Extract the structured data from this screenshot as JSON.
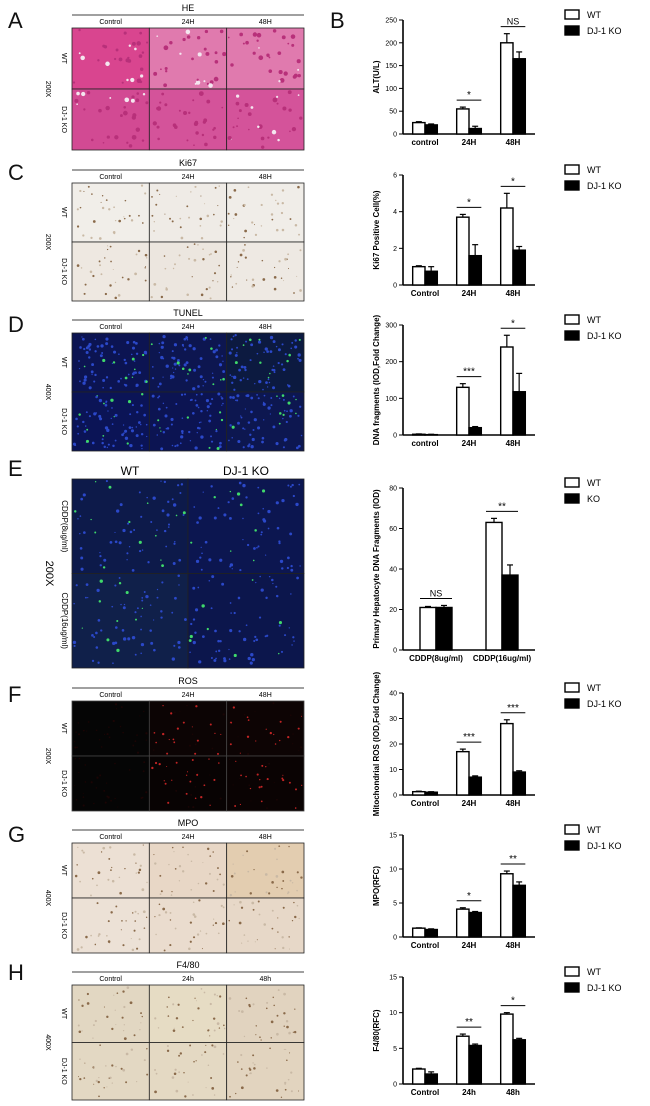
{
  "panel_letters": [
    "A",
    "B",
    "C",
    "D",
    "E",
    "F",
    "G",
    "H"
  ],
  "micro_panels": [
    {
      "id": "A",
      "title": "HE",
      "cols": [
        "Control",
        "24H",
        "48H"
      ],
      "rows": [
        "WT",
        "DJ-1 KO"
      ],
      "mag": "200X",
      "kind": "he",
      "tiles": [
        "#d9458f",
        "#e07aae",
        "#e07aae",
        "#d24a93",
        "#d4539a",
        "#d4539a"
      ]
    },
    {
      "id": "C",
      "title": "Ki67",
      "cols": [
        "Control",
        "24H",
        "48H"
      ],
      "rows": [
        "WT",
        "DJ-1 KO"
      ],
      "mag": "200X",
      "kind": "ihc",
      "tiles": [
        "#f1eee9",
        "#efebe6",
        "#f0ede8",
        "#eee8e1",
        "#ece6df",
        "#eee9e3"
      ]
    },
    {
      "id": "D",
      "title": "TUNEL",
      "cols": [
        "Control",
        "24H",
        "48H"
      ],
      "rows": [
        "WT",
        "DJ-1 KO"
      ],
      "mag": "400X",
      "kind": "fluor",
      "tiles": [
        "#0c1452",
        "#0d1650",
        "#0c1a40",
        "#0b1456",
        "#0c1452",
        "#0d1750"
      ]
    },
    {
      "id": "E",
      "title": "",
      "cols": [
        "WT",
        "DJ-1 KO"
      ],
      "rows": [
        "CDDP(8ug/ml)",
        "CDDP(16ug/ml)"
      ],
      "mag": "200X",
      "kind": "fluor",
      "tiles": [
        "#0d1a4a",
        "#0c1650",
        "#10204a",
        "#0c164c"
      ]
    },
    {
      "id": "F",
      "title": "ROS",
      "cols": [
        "Control",
        "24H",
        "48H"
      ],
      "rows": [
        "WT",
        "DJ-1 KO"
      ],
      "mag": "200X",
      "kind": "dark",
      "tiles": [
        "#050505",
        "#0c0404",
        "#0d0404",
        "#050505",
        "#080303",
        "#0a0303"
      ]
    },
    {
      "id": "G",
      "title": "MPO",
      "cols": [
        "Control",
        "24H",
        "48H"
      ],
      "rows": [
        "WT",
        "DJ-1 KO"
      ],
      "mag": "400X",
      "kind": "ihc",
      "tiles": [
        "#ece0d4",
        "#e8d7c6",
        "#e3cdb0",
        "#ece1d6",
        "#eadcce",
        "#e7d8c8"
      ]
    },
    {
      "id": "H",
      "title": "F4/80",
      "cols": [
        "Control",
        "24h",
        "48h"
      ],
      "rows": [
        "WT",
        "DJ-1 KO"
      ],
      "mag": "400X",
      "kind": "ihc",
      "tiles": [
        "#e2d7c2",
        "#e6dcc4",
        "#e1d3bf",
        "#e3d8c3",
        "#e4d9c3",
        "#e2d4bf"
      ]
    }
  ],
  "colors": {
    "wt": "#ffffff",
    "ko": "#000000",
    "axis": "#000000"
  },
  "chart_data": [
    {
      "type": "bar",
      "id": "B",
      "categories": [
        "control",
        "24H",
        "48H"
      ],
      "ylabel": "ALT(U/L)",
      "ylim": [
        0,
        250
      ],
      "yticks": [
        0,
        50,
        100,
        150,
        200,
        250
      ],
      "series": [
        {
          "name": "WT",
          "values": [
            25,
            55,
            200
          ],
          "errors": [
            2,
            4,
            20
          ]
        },
        {
          "name": "DJ-1 KO",
          "values": [
            20,
            12,
            165
          ],
          "errors": [
            2,
            5,
            15
          ]
        }
      ],
      "annotations": [
        {
          "group": 1,
          "text": "*"
        },
        {
          "group": 2,
          "text": "NS"
        }
      ],
      "legend": "top-right"
    },
    {
      "type": "bar",
      "id": "C",
      "categories": [
        "Control",
        "24H",
        "48H"
      ],
      "ylabel": "Ki67 Positive Cell(%)",
      "ylim": [
        0,
        6
      ],
      "yticks": [
        0,
        2,
        4,
        6
      ],
      "series": [
        {
          "name": "WT",
          "values": [
            1.0,
            3.7,
            4.2
          ],
          "errors": [
            0.05,
            0.15,
            0.8
          ]
        },
        {
          "name": "DJ-1 KO",
          "values": [
            0.75,
            1.6,
            1.9
          ],
          "errors": [
            0.25,
            0.6,
            0.2
          ]
        }
      ],
      "annotations": [
        {
          "group": 1,
          "text": "*"
        },
        {
          "group": 2,
          "text": "*"
        }
      ],
      "legend": "top-right"
    },
    {
      "type": "bar",
      "id": "D",
      "categories": [
        "control",
        "24H",
        "48H"
      ],
      "ylabel": "DNA fragments (IOD,Fold Change)",
      "ylim": [
        0,
        300
      ],
      "yticks": [
        0,
        100,
        200,
        300
      ],
      "series": [
        {
          "name": "WT",
          "values": [
            2,
            130,
            240
          ],
          "errors": [
            1,
            10,
            32
          ]
        },
        {
          "name": "DJ-1 KO",
          "values": [
            1,
            20,
            118
          ],
          "errors": [
            1,
            3,
            50
          ]
        }
      ],
      "annotations": [
        {
          "group": 1,
          "text": "***"
        },
        {
          "group": 2,
          "text": "*"
        }
      ],
      "legend": "top-right"
    },
    {
      "type": "bar",
      "id": "E",
      "categories": [
        "CDDP(8ug/ml)",
        "CDDP(16ug/ml)"
      ],
      "ylabel": "Primary Hepatocyte DNA Fragments (IOD)",
      "ylim": [
        0,
        80
      ],
      "yticks": [
        0,
        20,
        40,
        60,
        80
      ],
      "series": [
        {
          "name": "WT",
          "values": [
            21,
            63
          ],
          "errors": [
            0.5,
            2
          ]
        },
        {
          "name": "KO",
          "values": [
            21,
            37
          ],
          "errors": [
            1,
            5
          ]
        }
      ],
      "annotations": [
        {
          "group": 0,
          "text": "NS"
        },
        {
          "group": 1,
          "text": "**"
        }
      ],
      "legend": "top-right"
    },
    {
      "type": "bar",
      "id": "F",
      "categories": [
        "Control",
        "24H",
        "48H"
      ],
      "ylabel": "Mitochondrial ROS (IOD,Fold Change)",
      "ylim": [
        0,
        40
      ],
      "yticks": [
        0,
        10,
        20,
        30,
        40
      ],
      "series": [
        {
          "name": "WT",
          "values": [
            1.3,
            17,
            28
          ],
          "errors": [
            0.2,
            1,
            1.5
          ]
        },
        {
          "name": "DJ-1 KO",
          "values": [
            1.1,
            7,
            9
          ],
          "errors": [
            0.2,
            0.5,
            0.5
          ]
        }
      ],
      "annotations": [
        {
          "group": 1,
          "text": "***"
        },
        {
          "group": 2,
          "text": "***"
        }
      ],
      "legend": "top-right"
    },
    {
      "type": "bar",
      "id": "G",
      "categories": [
        "Control",
        "24H",
        "48H"
      ],
      "ylabel": "MPO(RFC)",
      "ylim": [
        0,
        15
      ],
      "yticks": [
        0,
        5,
        10,
        15
      ],
      "series": [
        {
          "name": "WT",
          "values": [
            1.3,
            4.1,
            9.3
          ],
          "errors": [
            0.05,
            0.2,
            0.4
          ]
        },
        {
          "name": "DJ-1 KO",
          "values": [
            1.1,
            3.6,
            7.6
          ],
          "errors": [
            0.1,
            0.15,
            0.5
          ]
        }
      ],
      "annotations": [
        {
          "group": 1,
          "text": "*"
        },
        {
          "group": 2,
          "text": "**"
        }
      ],
      "legend": "top-right"
    },
    {
      "type": "bar",
      "id": "H",
      "categories": [
        "Control",
        "24h",
        "48h"
      ],
      "ylabel": "F4/80(RFC)",
      "ylim": [
        0,
        15
      ],
      "yticks": [
        0,
        5,
        10,
        15
      ],
      "series": [
        {
          "name": "WT",
          "values": [
            2.1,
            6.7,
            9.8
          ],
          "errors": [
            0.1,
            0.3,
            0.2
          ]
        },
        {
          "name": "DJ-1 KO",
          "values": [
            1.4,
            5.4,
            6.2
          ],
          "errors": [
            0.3,
            0.2,
            0.2
          ]
        }
      ],
      "annotations": [
        {
          "group": 1,
          "text": "**"
        },
        {
          "group": 2,
          "text": "*"
        }
      ],
      "legend": "top-right"
    }
  ]
}
